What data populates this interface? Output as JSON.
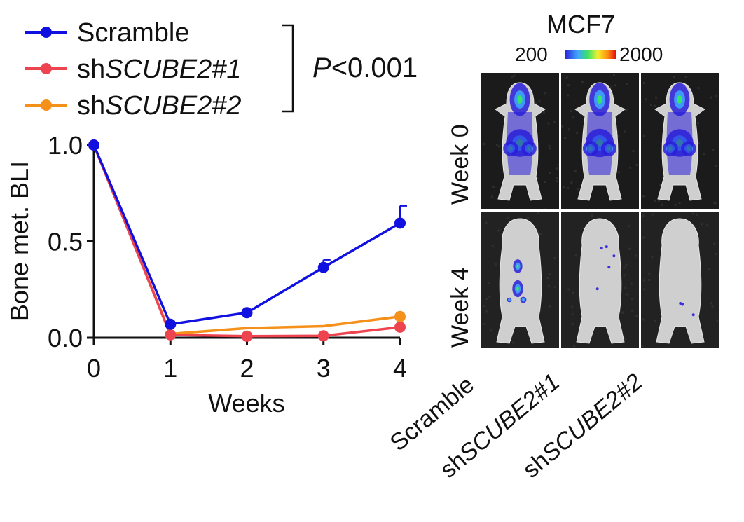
{
  "chart_data": {
    "type": "line",
    "xlabel": "Weeks",
    "ylabel": "Bone met. BLI",
    "x": [
      0,
      1,
      2,
      3,
      4
    ],
    "xticks": [
      "0",
      "1",
      "2",
      "3",
      "4"
    ],
    "yticks": [
      "0.0",
      "0.5",
      "1.0"
    ],
    "xlim": [
      0,
      4
    ],
    "ylim": [
      0,
      1.0
    ],
    "grid": false,
    "legend_position": "top-left",
    "series": [
      {
        "name": "Scramble",
        "name_prefix": "",
        "name_italic": "Scramble",
        "color": "#1010e0",
        "values": [
          1.0,
          0.07,
          0.13,
          0.365,
          0.595
        ],
        "error": [
          0,
          0,
          0,
          0.04,
          0.09
        ],
        "markers": true
      },
      {
        "name": "shSCUBE2#1",
        "name_prefix": "sh",
        "name_italic": "SCUBE2#1",
        "color": "#ee4450",
        "values": [
          1.0,
          0.015,
          0.008,
          0.01,
          0.055
        ],
        "error": [
          0,
          0,
          0,
          0,
          0
        ],
        "markers": true
      },
      {
        "name": "shSCUBE2#2",
        "name_prefix": "sh",
        "name_italic": "SCUBE2#2",
        "color": "#f5901a",
        "values": [
          1.0,
          0.02,
          0.05,
          0.06,
          0.11
        ],
        "error": [
          0,
          0,
          0,
          0,
          0
        ],
        "markers": false
      }
    ],
    "annotation": {
      "p_label": "P",
      "p_value": "<0.001"
    }
  },
  "imaging": {
    "cell_line": "MCF7",
    "colorbar": {
      "min": "200",
      "max": "2000",
      "colors": [
        "#2a1fd8",
        "#3fa4ff",
        "#39e26a",
        "#f4ef2b",
        "#ff8a10",
        "#e01010"
      ]
    },
    "rows": [
      {
        "label": "Week 0"
      },
      {
        "label": "Week 4"
      }
    ],
    "columns": [
      {
        "label": "Scramble",
        "prefix": "",
        "italic": "Scramble"
      },
      {
        "label": "shSCUBE2#1",
        "prefix": "sh",
        "italic": "SCUBE2#1"
      },
      {
        "label": "shSCUBE2#2",
        "prefix": "sh",
        "italic": "SCUBE2#2"
      }
    ],
    "signal_level": [
      [
        0.9,
        0.92,
        0.9
      ],
      [
        0.55,
        0.06,
        0.03
      ]
    ]
  }
}
